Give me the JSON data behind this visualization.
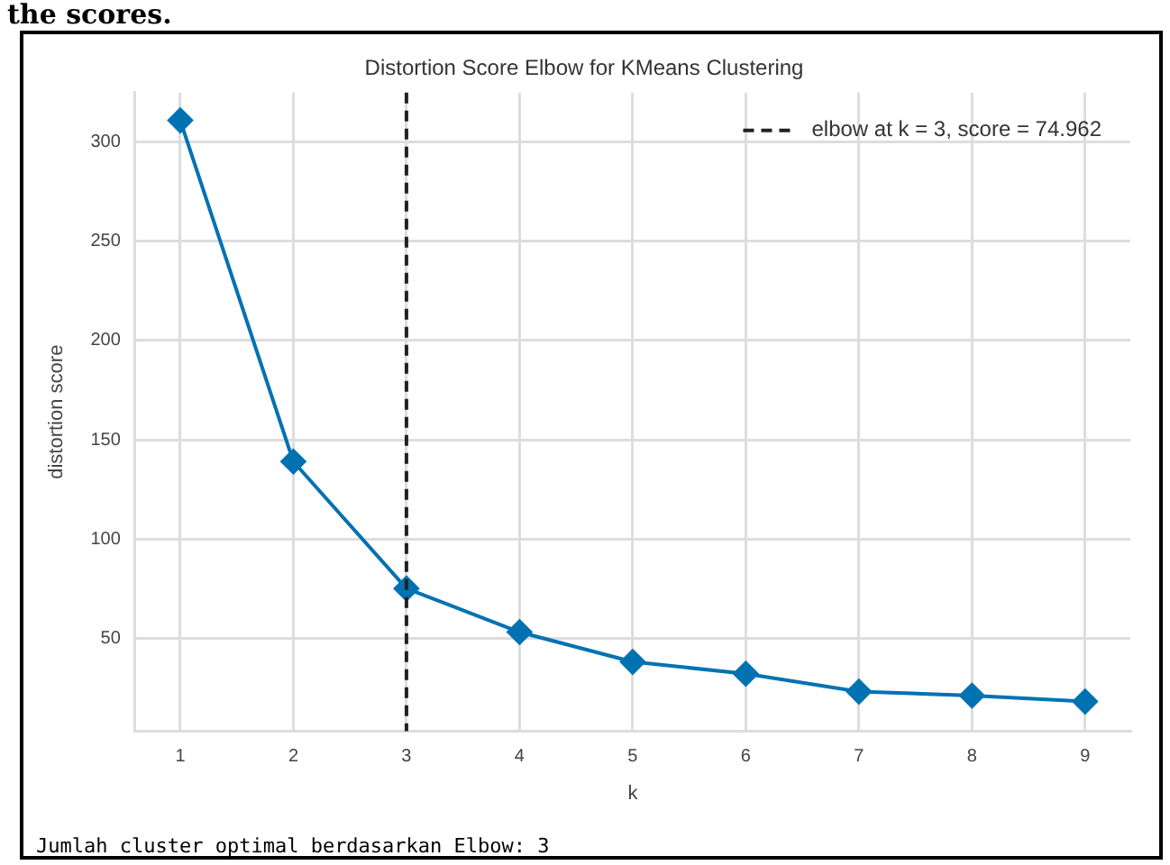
{
  "chart_data": {
    "type": "line",
    "title": "Distortion Score Elbow for KMeans Clustering",
    "xlabel": "k",
    "ylabel": "distortion score",
    "x": [
      1,
      2,
      3,
      4,
      5,
      6,
      7,
      8,
      9
    ],
    "series": [
      {
        "color": "#0072b2",
        "values": [
          311,
          139,
          74.962,
          53,
          38,
          32,
          23,
          21,
          18
        ]
      }
    ],
    "xlim": [
      0.6,
      9.4
    ],
    "xticks": [
      1,
      2,
      3,
      4,
      5,
      6,
      7,
      8,
      9
    ],
    "ylim": [
      3,
      325
    ],
    "yticks": [
      50,
      100,
      150,
      200,
      250,
      300
    ],
    "ref_lines": [
      {
        "axis": "x",
        "value": 3,
        "label": "elbow at k = 3, score = 74.962",
        "color": "#222222",
        "line_style": "dashed"
      }
    ],
    "grid": true,
    "legend": "top right",
    "marker": "diamond",
    "line_style": "solid",
    "annotations": [
      "the scores.",
      "Jumlah cluster optimal berdasarkan Elbow: 3"
    ]
  }
}
